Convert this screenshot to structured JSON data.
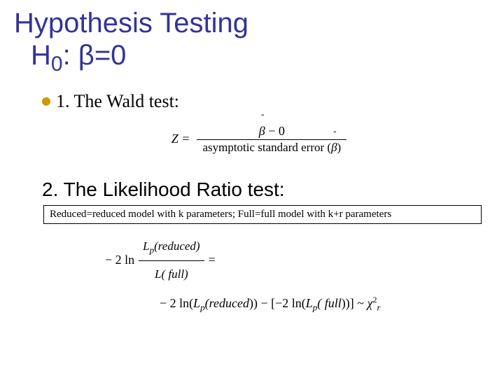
{
  "title": {
    "line1": "Hypothesis Testing",
    "line2_prefix": "H",
    "line2_sub": "0",
    "line2_rest": ": β=0"
  },
  "item1": {
    "text": "1. The Wald test:"
  },
  "formula1": {
    "lhs": "Z =",
    "numerator_beta": "β",
    "numerator_hat": "ˆ",
    "numerator_rest": " − 0",
    "denominator_pre": "asymptotic standard error (",
    "denominator_beta": "β",
    "denominator_hat": "ˆ",
    "denominator_post": ")"
  },
  "item2": {
    "text": "2. The Likelihood Ratio test:"
  },
  "note": {
    "text": "Reduced=reduced model with k parameters; Full=full model with k+r parameters"
  },
  "formula2": {
    "row1_prefix": "− 2 ln",
    "row1_num_L": "L",
    "row1_num_sub": "p",
    "row1_num_arg": "(reduced)",
    "row1_den_L": "L",
    "row1_den_arg": "( full)",
    "row1_eq": "=",
    "row2_a": "− 2 ln(",
    "row2_L1": "L",
    "row2_sub1": "p",
    "row2_arg1": "(reduced",
    "row2_mid": ")) − [−2 ln(",
    "row2_L2": "L",
    "row2_sub2": "p",
    "row2_arg2": "( full",
    "row2_end": "))] ~ ",
    "row2_chi": "χ",
    "row2_chi_sup": "2",
    "row2_chi_sub": "r"
  },
  "colors": {
    "title": "#333399",
    "bullet": "#cc9900",
    "text": "#000000",
    "background": "#ffffff"
  }
}
